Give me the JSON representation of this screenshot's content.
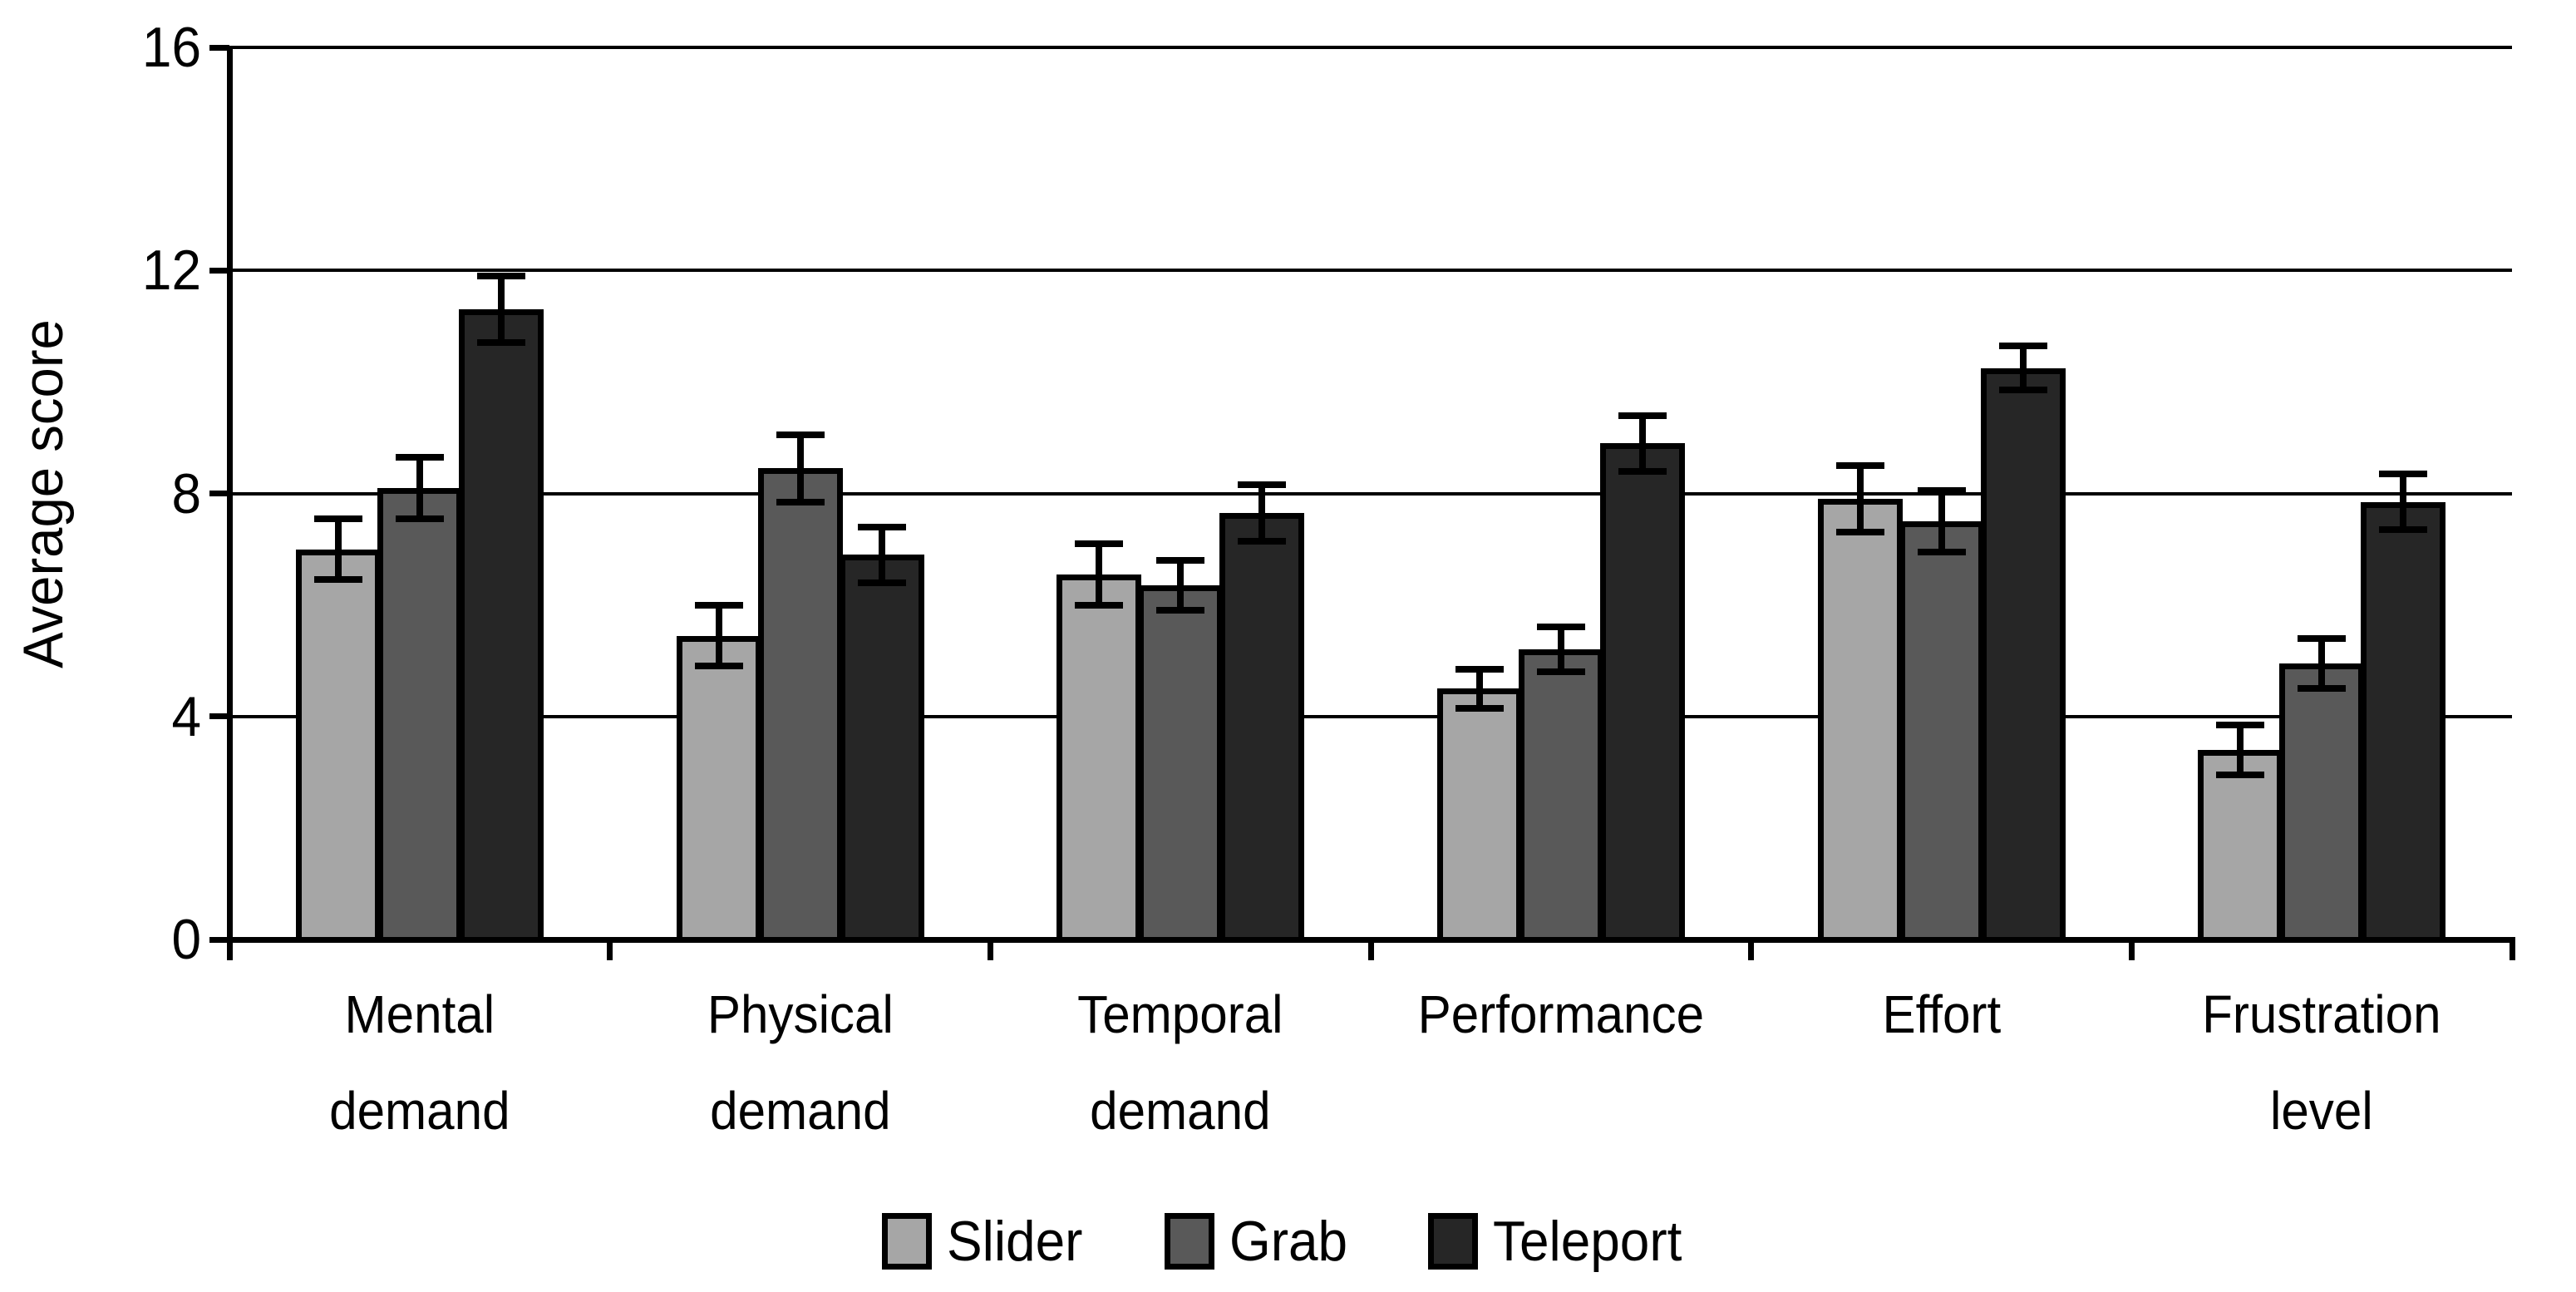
{
  "chart_data": {
    "type": "bar",
    "title": "",
    "ylabel": "Average score",
    "xlabel": "",
    "ylim": [
      0,
      16
    ],
    "yticks": [
      0,
      4,
      8,
      12,
      16
    ],
    "grid": "horizontal-black-lines-at-major-ticks",
    "legend_position": "bottom-center",
    "categories": [
      "Mental demand",
      "Physical demand",
      "Temporal demand",
      "Performance",
      "Effort",
      "Frustration level"
    ],
    "series": [
      {
        "name": "Slider",
        "color": "#a6a6a6",
        "values": [
          7.0,
          5.45,
          6.55,
          4.5,
          7.9,
          3.4
        ],
        "errors": [
          0.55,
          0.55,
          0.55,
          0.35,
          0.6,
          0.45
        ]
      },
      {
        "name": "Grab",
        "color": "#595959",
        "values": [
          8.1,
          8.45,
          6.35,
          5.2,
          7.5,
          4.95
        ],
        "errors": [
          0.55,
          0.6,
          0.45,
          0.4,
          0.55,
          0.45
        ]
      },
      {
        "name": "Teleport",
        "color": "#262626",
        "values": [
          11.3,
          6.9,
          7.65,
          8.9,
          10.25,
          7.85
        ],
        "errors": [
          0.6,
          0.5,
          0.5,
          0.5,
          0.4,
          0.5
        ]
      }
    ],
    "error_bar_style": "plus-minus caps, black",
    "bar_border_color": "#000000",
    "background_color": "#ffffff",
    "text_color": "#000000"
  }
}
